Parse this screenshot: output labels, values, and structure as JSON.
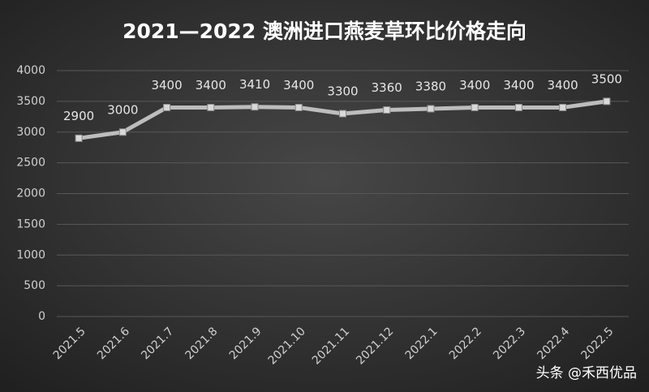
{
  "chart_data": {
    "type": "line",
    "title": "2021—2022  澳洲进口燕麦草环比价格走向",
    "categories": [
      "2021.5",
      "2021.6",
      "2021.7",
      "2021.8",
      "2021.9",
      "2021.10",
      "2021.11",
      "2021.12",
      "2022.1",
      "2022.2",
      "2022.3",
      "2022.4",
      "2022.5"
    ],
    "values": [
      2900,
      3000,
      3400,
      3400,
      3410,
      3400,
      3300,
      3360,
      3380,
      3400,
      3400,
      3400,
      3500
    ],
    "color": "#bdbdbd",
    "ylim": [
      0,
      4000
    ],
    "yticks": [
      0,
      500,
      1000,
      1500,
      2000,
      2500,
      3000,
      3500,
      4000
    ],
    "grid": true,
    "watermark": "头条 @禾西优品"
  }
}
